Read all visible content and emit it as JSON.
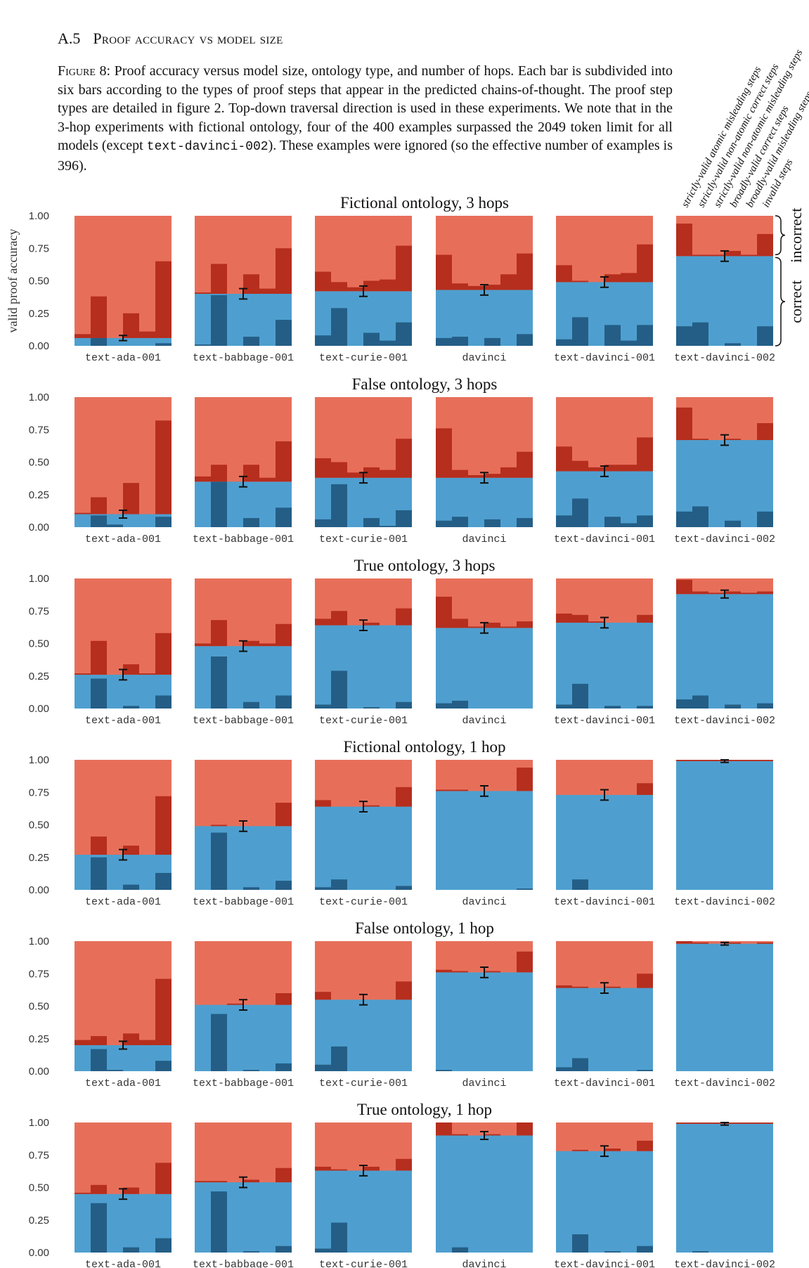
{
  "section": {
    "number": "A.5",
    "title": "Proof accuracy vs model size"
  },
  "caption": {
    "label": "Figure 8:",
    "part1": "Proof accuracy versus model size, ontology type, and number of hops. Each bar is subdivided into six bars according to the types of proof steps that appear in the predicted chains-of-thought. The proof step types are detailed in figure 2. Top-down traversal direction is used in these experiments. We note that in the 3-hop experiments with fictional ontology, four of the 400 examples surpassed the 2049 token limit for all models (except",
    "code": "text-davinci-002",
    "part2": "). These examples were ignored (so the effective number of examples is 396)."
  },
  "colors": {
    "correct": "#4e9fcf",
    "incorrect": "#e76f5a",
    "incorrect_sub": "#b62e1d",
    "correct_sub": "#245e86",
    "panel_bg": "#e5e5e5"
  },
  "chart_data": {
    "type": "bar",
    "ylabel": "valid proof accuracy",
    "ylim": [
      0,
      1
    ],
    "yticks": [
      "0.00",
      "0.25",
      "0.50",
      "0.75",
      "1.00"
    ],
    "legend": [
      "strictly-valid atomic misleading steps",
      "strictly-valid non-atomic correct steps",
      "strictly-valid non-atomic misleading steps",
      "broadly-valid correct steps",
      "broadly-valid misleading steps",
      "invalid steps"
    ],
    "brace_labels": [
      "incorrect",
      "correct"
    ],
    "models": [
      "text-ada-001",
      "text-babbage-001",
      "text-curie-001",
      "davinci",
      "text-davinci-001",
      "text-davinci-002"
    ],
    "panels": [
      {
        "title": "Fictional ontology, 3 hops",
        "groups": [
          {
            "accuracy": 0.06,
            "error": 0.02,
            "incorrect_bars": [
              0.09,
              0.38,
              0.06,
              0.25,
              0.11,
              0.65
            ],
            "correct_bars": [
              0.0,
              0.06,
              0.0,
              0.0,
              0.0,
              0.02
            ]
          },
          {
            "accuracy": 0.4,
            "error": 0.04,
            "incorrect_bars": [
              0.41,
              0.63,
              0.4,
              0.55,
              0.44,
              0.75
            ],
            "correct_bars": [
              0.01,
              0.39,
              0.0,
              0.07,
              0.0,
              0.2
            ]
          },
          {
            "accuracy": 0.42,
            "error": 0.04,
            "incorrect_bars": [
              0.57,
              0.49,
              0.45,
              0.5,
              0.51,
              0.77
            ],
            "correct_bars": [
              0.08,
              0.29,
              0.0,
              0.1,
              0.04,
              0.18
            ]
          },
          {
            "accuracy": 0.43,
            "error": 0.04,
            "incorrect_bars": [
              0.7,
              0.48,
              0.46,
              0.47,
              0.55,
              0.71
            ],
            "correct_bars": [
              0.06,
              0.07,
              0.0,
              0.06,
              0.0,
              0.09
            ]
          },
          {
            "accuracy": 0.49,
            "error": 0.04,
            "incorrect_bars": [
              0.62,
              0.5,
              0.49,
              0.55,
              0.56,
              0.78
            ],
            "correct_bars": [
              0.05,
              0.22,
              0.0,
              0.16,
              0.04,
              0.16
            ]
          },
          {
            "accuracy": 0.69,
            "error": 0.04,
            "incorrect_bars": [
              0.94,
              0.7,
              0.7,
              0.73,
              0.7,
              0.86
            ],
            "correct_bars": [
              0.15,
              0.18,
              0.0,
              0.02,
              0.0,
              0.15
            ]
          }
        ]
      },
      {
        "title": "False ontology, 3 hops",
        "groups": [
          {
            "accuracy": 0.1,
            "error": 0.03,
            "incorrect_bars": [
              0.11,
              0.23,
              0.1,
              0.34,
              0.1,
              0.82
            ],
            "correct_bars": [
              0.0,
              0.09,
              0.02,
              0.0,
              0.0,
              0.08
            ]
          },
          {
            "accuracy": 0.35,
            "error": 0.04,
            "incorrect_bars": [
              0.39,
              0.48,
              0.35,
              0.48,
              0.38,
              0.66
            ],
            "correct_bars": [
              0.0,
              0.35,
              0.0,
              0.07,
              0.0,
              0.15
            ]
          },
          {
            "accuracy": 0.38,
            "error": 0.04,
            "incorrect_bars": [
              0.53,
              0.5,
              0.42,
              0.46,
              0.44,
              0.68
            ],
            "correct_bars": [
              0.06,
              0.33,
              0.0,
              0.07,
              0.01,
              0.13
            ]
          },
          {
            "accuracy": 0.38,
            "error": 0.04,
            "incorrect_bars": [
              0.76,
              0.44,
              0.4,
              0.41,
              0.46,
              0.58
            ],
            "correct_bars": [
              0.05,
              0.08,
              0.0,
              0.06,
              0.0,
              0.07
            ]
          },
          {
            "accuracy": 0.43,
            "error": 0.04,
            "incorrect_bars": [
              0.62,
              0.51,
              0.46,
              0.48,
              0.48,
              0.69
            ],
            "correct_bars": [
              0.09,
              0.22,
              0.0,
              0.08,
              0.03,
              0.09
            ]
          },
          {
            "accuracy": 0.67,
            "error": 0.04,
            "incorrect_bars": [
              0.92,
              0.68,
              0.67,
              0.68,
              0.67,
              0.8
            ],
            "correct_bars": [
              0.12,
              0.16,
              0.0,
              0.05,
              0.0,
              0.12
            ]
          }
        ]
      },
      {
        "title": "True ontology, 3 hops",
        "groups": [
          {
            "accuracy": 0.26,
            "error": 0.04,
            "incorrect_bars": [
              0.27,
              0.52,
              0.26,
              0.34,
              0.27,
              0.58
            ],
            "correct_bars": [
              0.0,
              0.23,
              0.0,
              0.02,
              0.0,
              0.1
            ]
          },
          {
            "accuracy": 0.48,
            "error": 0.04,
            "incorrect_bars": [
              0.5,
              0.68,
              0.48,
              0.52,
              0.5,
              0.65
            ],
            "correct_bars": [
              0.0,
              0.4,
              0.0,
              0.05,
              0.0,
              0.1
            ]
          },
          {
            "accuracy": 0.64,
            "error": 0.04,
            "incorrect_bars": [
              0.69,
              0.75,
              0.64,
              0.66,
              0.64,
              0.77
            ],
            "correct_bars": [
              0.03,
              0.29,
              0.0,
              0.01,
              0.0,
              0.05
            ]
          },
          {
            "accuracy": 0.62,
            "error": 0.04,
            "incorrect_bars": [
              0.86,
              0.69,
              0.63,
              0.66,
              0.63,
              0.67
            ],
            "correct_bars": [
              0.04,
              0.06,
              0.0,
              0.0,
              0.0,
              0.0
            ]
          },
          {
            "accuracy": 0.66,
            "error": 0.04,
            "incorrect_bars": [
              0.73,
              0.72,
              0.67,
              0.66,
              0.66,
              0.72
            ],
            "correct_bars": [
              0.03,
              0.19,
              0.0,
              0.02,
              0.0,
              0.02
            ]
          },
          {
            "accuracy": 0.88,
            "error": 0.03,
            "incorrect_bars": [
              0.99,
              0.9,
              0.89,
              0.9,
              0.89,
              0.9
            ],
            "correct_bars": [
              0.07,
              0.1,
              0.0,
              0.03,
              0.0,
              0.04
            ]
          }
        ]
      },
      {
        "title": "Fictional ontology, 1 hop",
        "groups": [
          {
            "accuracy": 0.27,
            "error": 0.04,
            "incorrect_bars": [
              0.27,
              0.41,
              0.26,
              0.34,
              0.26,
              0.72
            ],
            "correct_bars": [
              0.0,
              0.25,
              0.0,
              0.04,
              0.0,
              0.13
            ]
          },
          {
            "accuracy": 0.49,
            "error": 0.04,
            "incorrect_bars": [
              0.49,
              0.5,
              0.49,
              0.49,
              0.49,
              0.67
            ],
            "correct_bars": [
              0.0,
              0.44,
              0.0,
              0.02,
              0.0,
              0.07
            ]
          },
          {
            "accuracy": 0.64,
            "error": 0.04,
            "incorrect_bars": [
              0.69,
              0.64,
              0.64,
              0.65,
              0.64,
              0.79
            ],
            "correct_bars": [
              0.02,
              0.08,
              0.0,
              0.0,
              0.0,
              0.03
            ]
          },
          {
            "accuracy": 0.76,
            "error": 0.04,
            "incorrect_bars": [
              0.77,
              0.77,
              0.76,
              0.76,
              0.76,
              0.94
            ],
            "correct_bars": [
              0.0,
              0.0,
              0.0,
              0.0,
              0.0,
              0.01
            ]
          },
          {
            "accuracy": 0.73,
            "error": 0.04,
            "incorrect_bars": [
              0.73,
              0.73,
              0.73,
              0.73,
              0.73,
              0.82
            ],
            "correct_bars": [
              0.0,
              0.08,
              0.0,
              0.0,
              0.0,
              0.0
            ]
          },
          {
            "accuracy": 0.99,
            "error": 0.01,
            "incorrect_bars": [
              1.0,
              1.0,
              1.0,
              1.0,
              1.0,
              1.0
            ],
            "correct_bars": [
              0.0,
              0.0,
              0.0,
              0.0,
              0.0,
              0.0
            ]
          }
        ]
      },
      {
        "title": "False ontology, 1 hop",
        "groups": [
          {
            "accuracy": 0.2,
            "error": 0.03,
            "incorrect_bars": [
              0.24,
              0.27,
              0.2,
              0.29,
              0.24,
              0.71
            ],
            "correct_bars": [
              0.0,
              0.17,
              0.01,
              0.0,
              0.0,
              0.08
            ]
          },
          {
            "accuracy": 0.51,
            "error": 0.04,
            "incorrect_bars": [
              0.51,
              0.51,
              0.52,
              0.51,
              0.51,
              0.6
            ],
            "correct_bars": [
              0.0,
              0.44,
              0.0,
              0.01,
              0.0,
              0.06
            ]
          },
          {
            "accuracy": 0.55,
            "error": 0.04,
            "incorrect_bars": [
              0.61,
              0.55,
              0.55,
              0.55,
              0.55,
              0.69
            ],
            "correct_bars": [
              0.05,
              0.19,
              0.0,
              0.0,
              0.0,
              0.0
            ]
          },
          {
            "accuracy": 0.76,
            "error": 0.04,
            "incorrect_bars": [
              0.78,
              0.77,
              0.76,
              0.77,
              0.76,
              0.92
            ],
            "correct_bars": [
              0.01,
              0.0,
              0.0,
              0.0,
              0.0,
              0.0
            ]
          },
          {
            "accuracy": 0.64,
            "error": 0.04,
            "incorrect_bars": [
              0.66,
              0.65,
              0.64,
              0.65,
              0.64,
              0.75
            ],
            "correct_bars": [
              0.03,
              0.1,
              0.0,
              0.0,
              0.0,
              0.01
            ]
          },
          {
            "accuracy": 0.98,
            "error": 0.01,
            "incorrect_bars": [
              1.0,
              0.99,
              0.98,
              0.99,
              0.98,
              0.99
            ],
            "correct_bars": [
              0.0,
              0.0,
              0.0,
              0.0,
              0.0,
              0.0
            ]
          }
        ]
      },
      {
        "title": "True ontology, 1 hop",
        "groups": [
          {
            "accuracy": 0.45,
            "error": 0.04,
            "incorrect_bars": [
              0.46,
              0.52,
              0.45,
              0.5,
              0.45,
              0.69
            ],
            "correct_bars": [
              0.0,
              0.38,
              0.0,
              0.04,
              0.0,
              0.11
            ]
          },
          {
            "accuracy": 0.54,
            "error": 0.04,
            "incorrect_bars": [
              0.55,
              0.55,
              0.54,
              0.56,
              0.54,
              0.65
            ],
            "correct_bars": [
              0.0,
              0.47,
              0.0,
              0.01,
              0.0,
              0.05
            ]
          },
          {
            "accuracy": 0.63,
            "error": 0.04,
            "incorrect_bars": [
              0.66,
              0.64,
              0.63,
              0.66,
              0.63,
              0.72
            ],
            "correct_bars": [
              0.03,
              0.23,
              0.0,
              0.0,
              0.0,
              0.0
            ]
          },
          {
            "accuracy": 0.9,
            "error": 0.03,
            "incorrect_bars": [
              1.0,
              0.91,
              0.9,
              0.91,
              0.9,
              1.0
            ],
            "correct_bars": [
              0.0,
              0.04,
              0.0,
              0.0,
              0.0,
              0.0
            ]
          },
          {
            "accuracy": 0.78,
            "error": 0.04,
            "incorrect_bars": [
              0.78,
              0.79,
              0.78,
              0.8,
              0.78,
              0.86
            ],
            "correct_bars": [
              0.0,
              0.14,
              0.0,
              0.01,
              0.0,
              0.05
            ]
          },
          {
            "accuracy": 0.99,
            "error": 0.01,
            "incorrect_bars": [
              1.0,
              1.0,
              1.0,
              1.0,
              1.0,
              1.0
            ],
            "correct_bars": [
              0.0,
              0.01,
              0.0,
              0.0,
              0.0,
              0.0
            ]
          }
        ]
      }
    ]
  }
}
